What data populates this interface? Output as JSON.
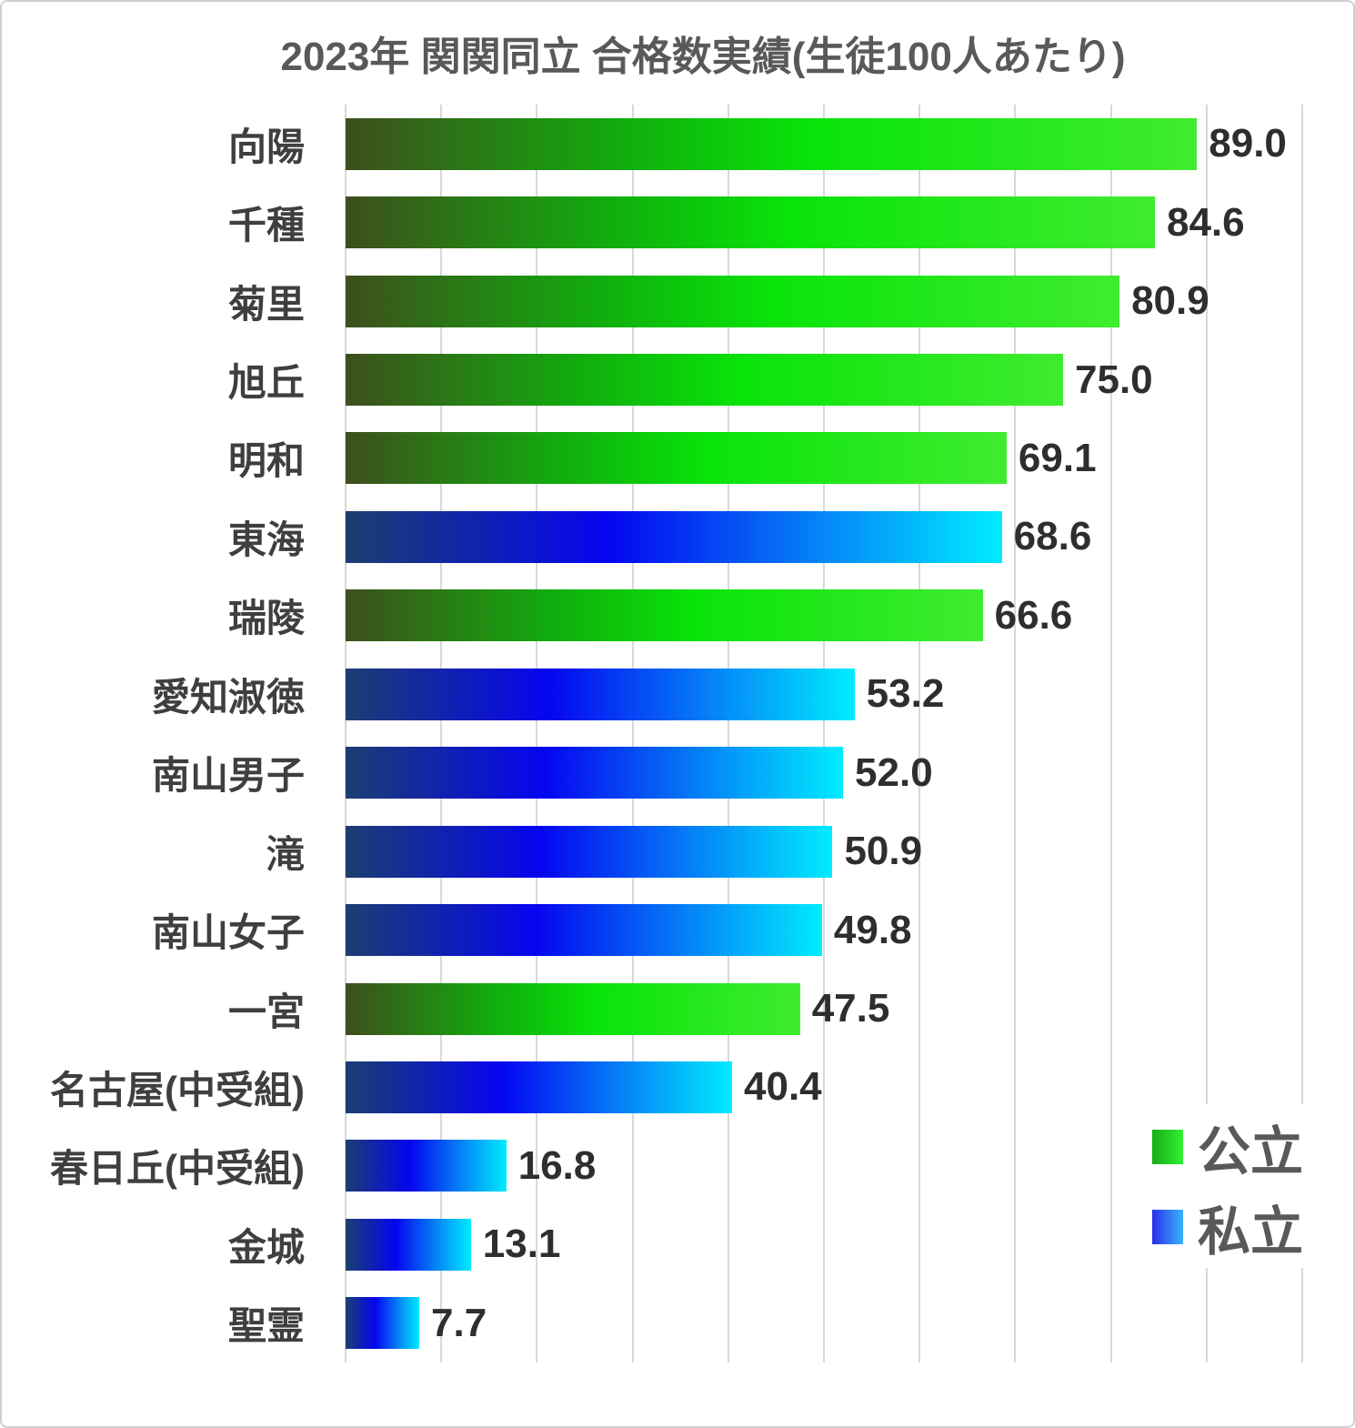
{
  "title": "2023年 関関同立 合格数実績(生徒100人あたり)",
  "legend": {
    "items": [
      {
        "label": "公立",
        "key": "public"
      },
      {
        "label": "私立",
        "key": "private"
      }
    ]
  },
  "colors": {
    "public_bar_gradient": [
      "#3e4e1d",
      "#10ae0d",
      "#09e409",
      "#3fec2f"
    ],
    "private_bar_gradient": [
      "#1c3e6f",
      "#0505f0",
      "#0583f7",
      "#00ecfe"
    ],
    "title_color": "#595959",
    "category_label_color": "#3f3f3f",
    "value_label_color": "#2e2e2e",
    "gridline_color": "#d8d8d8"
  },
  "chart_data": {
    "type": "bar",
    "orientation": "horizontal",
    "title": "2023年 関関同立 合格数実績(生徒100人あたり)",
    "categories": [
      "向陽",
      "千種",
      "菊里",
      "旭丘",
      "明和",
      "東海",
      "瑞陵",
      "愛知淑徳",
      "南山男子",
      "滝",
      "南山女子",
      "一宮",
      "名古屋(中受組)",
      "春日丘(中受組)",
      "金城",
      "聖霊"
    ],
    "values": [
      89.0,
      84.6,
      80.9,
      75.0,
      69.1,
      68.6,
      66.6,
      53.2,
      52.0,
      50.9,
      49.8,
      47.5,
      40.4,
      16.8,
      13.1,
      7.7
    ],
    "value_labels": [
      "89.0",
      "84.6",
      "80.9",
      "75.0",
      "69.1",
      "68.6",
      "66.6",
      "53.2",
      "52.0",
      "50.9",
      "49.8",
      "47.5",
      "40.4",
      "16.8",
      "13.1",
      "7.7"
    ],
    "groups": [
      "public",
      "public",
      "public",
      "public",
      "public",
      "private",
      "public",
      "private",
      "private",
      "private",
      "private",
      "public",
      "private",
      "private",
      "private",
      "private"
    ],
    "xlim": [
      0,
      100
    ],
    "gridline_step": 10,
    "grid": true,
    "legend_position": "bottom-right",
    "legend_labels": {
      "public": "公立",
      "private": "私立"
    }
  }
}
